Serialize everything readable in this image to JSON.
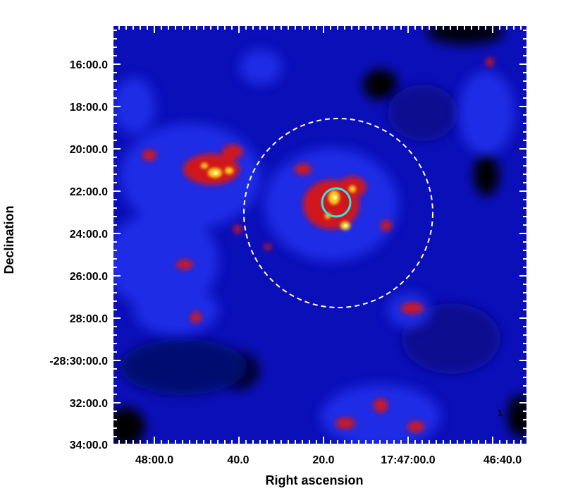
{
  "image": {
    "type": "astronomical-sky-map",
    "colormap": [
      "#000000",
      "#0b0fb8",
      "#2233ee",
      "#d0151d",
      "#ffd21c"
    ],
    "x_axis": {
      "label": "Right ascension",
      "ticks": [
        "48:00.0",
        "40.0",
        "20.0",
        "17:47:00.0",
        "46:40.0"
      ]
    },
    "y_axis": {
      "label": "Declination",
      "ticks": [
        "16:00.0",
        "18:00.0",
        "20:00.0",
        "22:00.0",
        "24:00.0",
        "26:00.0",
        "28:00.0",
        "-28:30:00.0",
        "32:00.0",
        "34:00.0"
      ]
    },
    "overlays": [
      {
        "name": "large dashed circle",
        "color": "#ffffff",
        "style": "dashed"
      },
      {
        "name": "small solid circle",
        "color": "#2ee6e6",
        "style": "solid"
      }
    ],
    "corner_mark": "1"
  }
}
